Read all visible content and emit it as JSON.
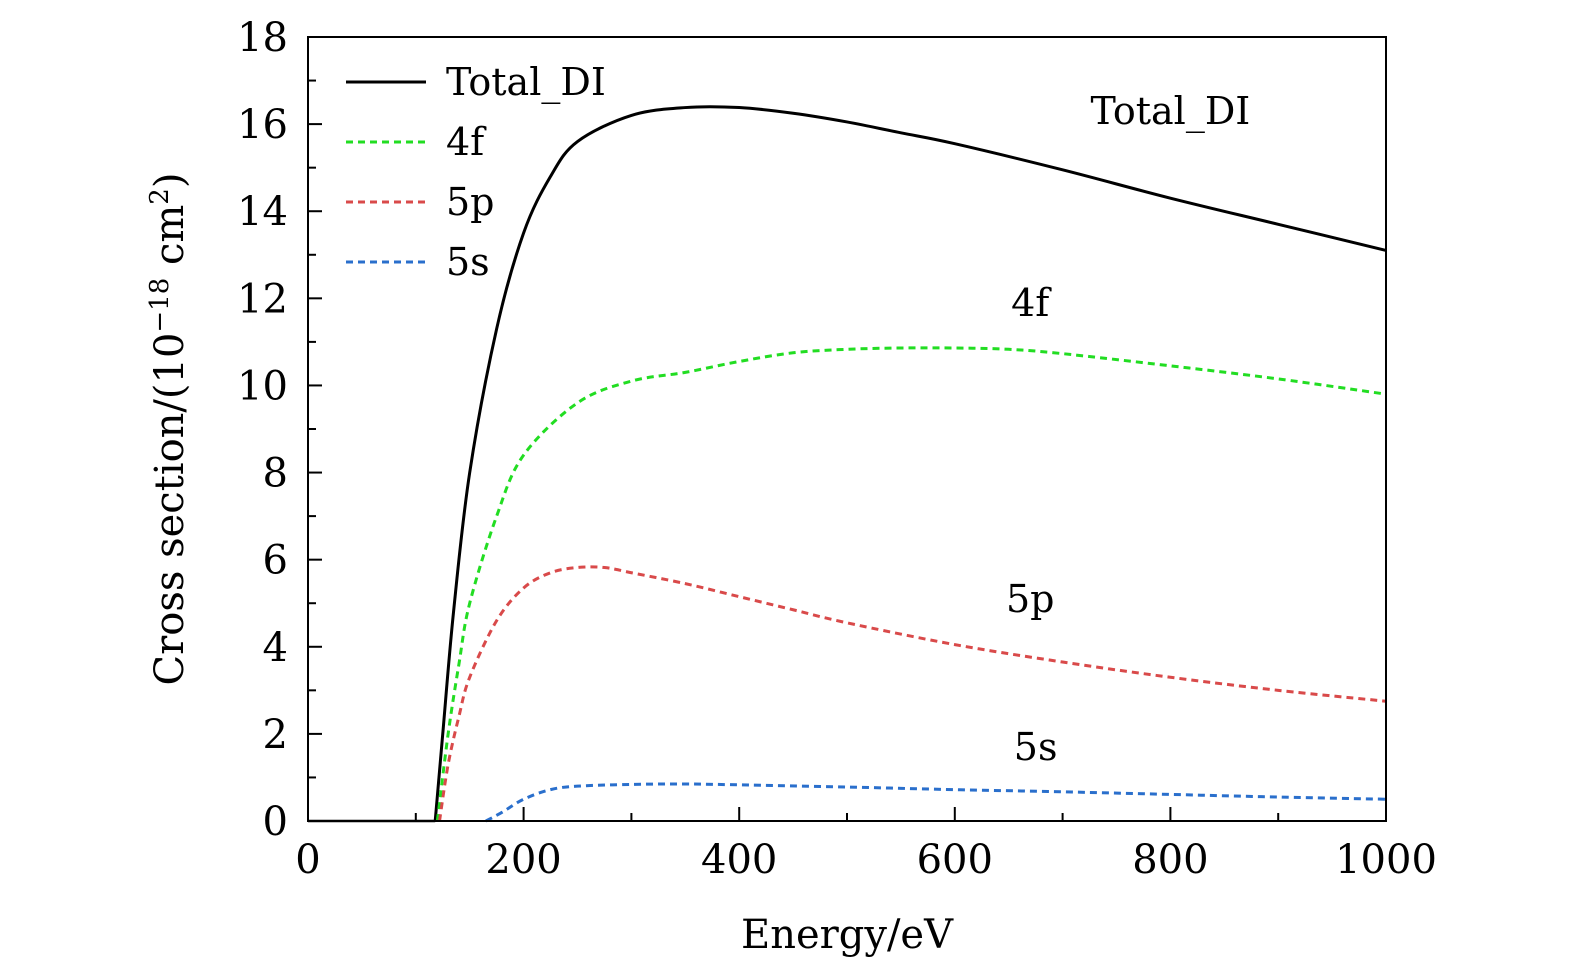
{
  "chart_data": {
    "type": "line",
    "title": "",
    "xlabel": "Energy/eV",
    "ylabel": "Cross section/(10",
    "ylabel_exp": "−18",
    "ylabel_unit": " cm",
    "ylabel_unit_exp": "2",
    "ylabel_close": ")",
    "xlim": [
      0,
      1000
    ],
    "ylim": [
      0,
      18
    ],
    "xticks": [
      0,
      200,
      400,
      600,
      800,
      1000
    ],
    "yticks": [
      0,
      2,
      4,
      6,
      8,
      10,
      12,
      14,
      16,
      18
    ],
    "xtick_labels": [
      "0",
      "200",
      "400",
      "600",
      "800",
      "1000"
    ],
    "ytick_labels": [
      "0",
      "2",
      "4",
      "6",
      "8",
      "10",
      "12",
      "14",
      "16",
      "18"
    ],
    "legend_position": "top-left",
    "grid": false,
    "series": [
      {
        "name": "Total_DI",
        "color": "#000000",
        "dash": "solid",
        "x": [
          118,
          125,
          135,
          150,
          175,
          200,
          225,
          250,
          300,
          350,
          400,
          450,
          500,
          550,
          600,
          700,
          800,
          900,
          1000
        ],
        "y": [
          0,
          2.0,
          4.8,
          8.0,
          11.3,
          13.5,
          14.8,
          15.6,
          16.2,
          16.38,
          16.38,
          16.25,
          16.05,
          15.8,
          15.55,
          14.95,
          14.3,
          13.7,
          13.1
        ]
      },
      {
        "name": "4f",
        "color": "#22dd22",
        "dash": "dashed",
        "x": [
          120,
          130,
          140,
          150,
          175,
          200,
          250,
          300,
          350,
          400,
          450,
          500,
          550,
          600,
          650,
          700,
          800,
          900,
          1000
        ],
        "y": [
          0,
          2.0,
          3.6,
          5.0,
          7.0,
          8.4,
          9.6,
          10.1,
          10.3,
          10.55,
          10.75,
          10.83,
          10.86,
          10.86,
          10.83,
          10.73,
          10.45,
          10.15,
          9.8
        ]
      },
      {
        "name": "5p",
        "color": "#d94a4a",
        "dash": "dashed",
        "x": [
          122,
          130,
          140,
          150,
          175,
          200,
          225,
          250,
          275,
          300,
          350,
          400,
          450,
          500,
          600,
          700,
          800,
          900,
          1000
        ],
        "y": [
          0,
          1.3,
          2.4,
          3.3,
          4.6,
          5.35,
          5.7,
          5.82,
          5.82,
          5.7,
          5.45,
          5.15,
          4.85,
          4.55,
          4.05,
          3.65,
          3.3,
          3.0,
          2.75
        ]
      },
      {
        "name": "5s",
        "color": "#2a6fcc",
        "dash": "dashed",
        "x": [
          165,
          180,
          200,
          225,
          250,
          300,
          350,
          400,
          500,
          600,
          700,
          800,
          900,
          1000
        ],
        "y": [
          0,
          0.2,
          0.5,
          0.72,
          0.8,
          0.84,
          0.85,
          0.83,
          0.78,
          0.72,
          0.67,
          0.61,
          0.55,
          0.5
        ]
      }
    ],
    "annotations": [
      {
        "text": "Total_DI",
        "x": 800,
        "y": 16.0
      },
      {
        "text": "4f",
        "x": 670,
        "y": 11.6
      },
      {
        "text": "5p",
        "x": 670,
        "y": 4.8
      },
      {
        "text": "5s",
        "x": 675,
        "y": 1.4
      }
    ]
  }
}
